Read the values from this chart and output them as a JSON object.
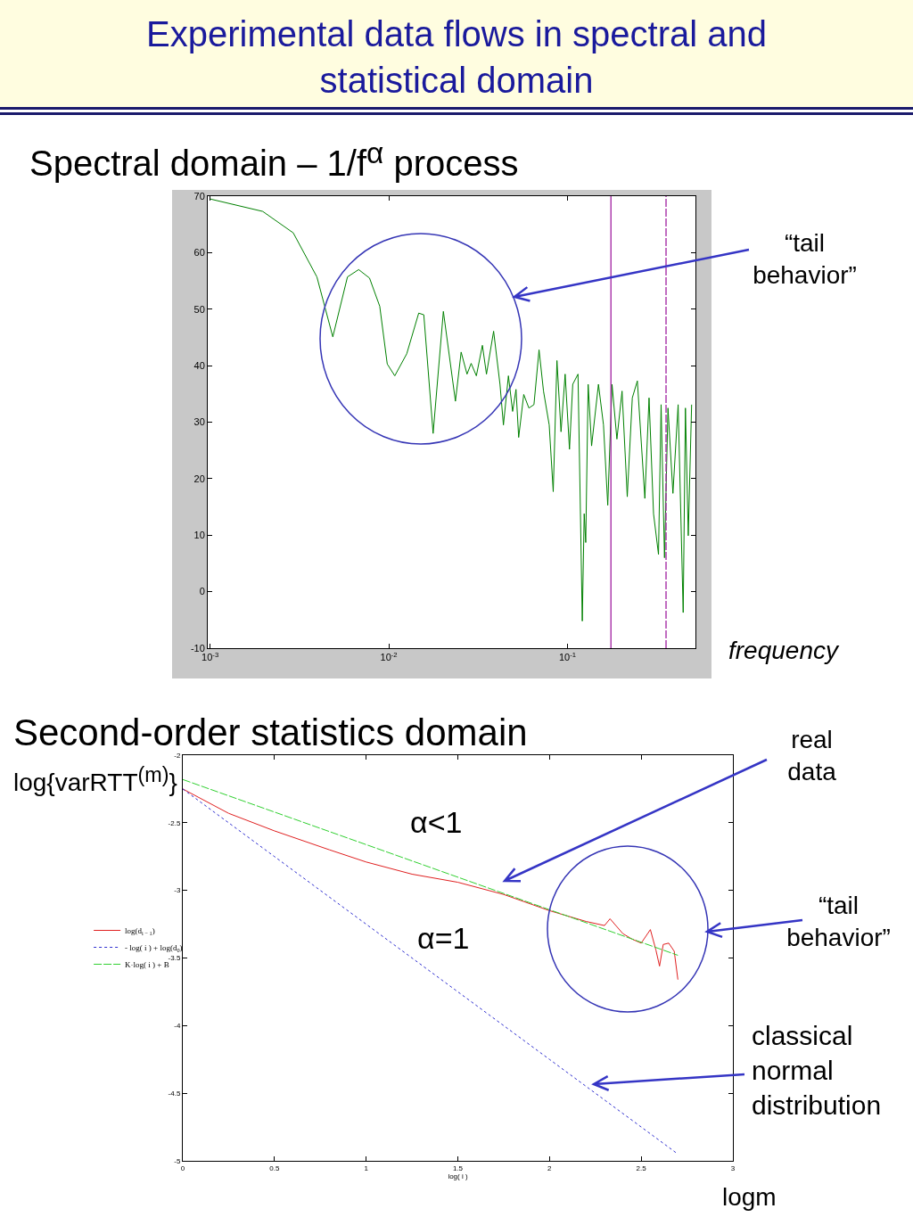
{
  "chart_data": [
    {
      "type": "line",
      "title": "Experimental data flows in spectral and statistical domain",
      "subtitle": "Spectral domain – 1/f$^{α}$ process",
      "xlabel": "frequency",
      "log": "x",
      "grid": false,
      "marker": "none",
      "xlim": [
        0.00097,
        0.52
      ],
      "xticks": [
        {
          "value": 0.001,
          "label": "10$^{-3}$"
        },
        {
          "value": 0.01,
          "label": "10$^{-2}$"
        },
        {
          "value": 0.1,
          "label": "10$^{-1}$"
        }
      ],
      "ylim": [
        -10,
        70
      ],
      "yticks": [
        -10,
        0,
        10,
        20,
        30,
        40,
        50,
        60,
        70
      ],
      "x": [
        0.001,
        0.00197,
        0.00292,
        0.00396,
        0.00486,
        0.00587,
        0.00678,
        0.0078,
        0.0089,
        0.0098,
        0.0108,
        0.0126,
        0.0147,
        0.0157,
        0.0177,
        0.0202,
        0.0236,
        0.0254,
        0.0274,
        0.0289,
        0.0309,
        0.0334,
        0.0352,
        0.0386,
        0.0419,
        0.0438,
        0.0467,
        0.0493,
        0.0515,
        0.0533,
        0.0569,
        0.0608,
        0.0649,
        0.0693,
        0.0734,
        0.079,
        0.0832,
        0.0873,
        0.092,
        0.097,
        0.1026,
        0.107,
        0.1145,
        0.121,
        0.124,
        0.1265,
        0.1305,
        0.1364,
        0.149,
        0.159,
        0.168,
        0.1775,
        0.189,
        0.202,
        0.216,
        0.2305,
        0.246,
        0.271,
        0.286,
        0.303,
        0.323,
        0.334,
        0.349,
        0.365,
        0.389,
        0.416,
        0.444,
        0.457,
        0.474,
        0.495
      ],
      "series": [
        {
          "color": "#008000",
          "line_style": "solid",
          "values": [
            69.5,
            67.3,
            63.5,
            55.7,
            45.1,
            55.7,
            57.0,
            55.5,
            50.5,
            40.3,
            38.2,
            42.1,
            49.3,
            49.0,
            28.0,
            49.6,
            33.7,
            42.4,
            38.5,
            40.4,
            38.2,
            43.6,
            38.5,
            46.1,
            36.7,
            29.5,
            38.2,
            31.9,
            35.8,
            27.3,
            34.9,
            32.5,
            33.1,
            42.8,
            35.5,
            29.5,
            17.7,
            40.9,
            28.3,
            38.5,
            25.2,
            36.7,
            38.5,
            -5.2,
            13.8,
            8.7,
            36.7,
            25.8,
            36.7,
            29.5,
            15.3,
            36.7,
            27.0,
            35.5,
            16.8,
            34.3,
            37.3,
            16.5,
            34.3,
            13.8,
            6.6,
            33.1,
            6.0,
            32.5,
            17.4,
            33.1,
            -3.7,
            32.5,
            9.9,
            33.1
          ]
        }
      ],
      "ref_lines": [
        {
          "axis": "x",
          "value": 0.175,
          "color": "#a020a0",
          "line_style": "solid"
        },
        {
          "axis": "x",
          "value": 0.356,
          "color": "#a020a0",
          "line_style": "dashed"
        }
      ],
      "annotations": [
        "“tail behavior”"
      ]
    },
    {
      "type": "line",
      "title": "Second-order statistics domain",
      "ylabel": "log{varRTT$^{(m)}$}",
      "xlabel": "log( i )",
      "grid": false,
      "marker": "none",
      "legend": "left",
      "xlim": [
        0,
        3
      ],
      "xticks": [
        0,
        0.5,
        1,
        1.5,
        2,
        2.5,
        3
      ],
      "ylim": [
        -5,
        -2
      ],
      "yticks": [
        -5,
        -4.5,
        -4,
        -3.5,
        -3,
        -2.5,
        -2
      ],
      "series": [
        {
          "name": "log(d$_{i − 1}$)",
          "color": "#e02020",
          "line_style": "solid",
          "x": [
            0,
            0.25,
            0.5,
            0.8,
            1,
            1.25,
            1.5,
            1.75,
            2,
            2.2,
            2.3,
            2.33,
            2.4,
            2.45,
            2.5,
            2.55,
            2.58,
            2.6,
            2.62,
            2.65,
            2.68,
            2.7
          ],
          "values": [
            -2.25,
            -2.43,
            -2.56,
            -2.7,
            -2.79,
            -2.88,
            -2.94,
            -3.03,
            -3.15,
            -3.23,
            -3.26,
            -3.21,
            -3.32,
            -3.36,
            -3.39,
            -3.29,
            -3.44,
            -3.56,
            -3.4,
            -3.39,
            -3.45,
            -3.66
          ]
        },
        {
          "name": "- log( i ) + log(d$_{0}$)",
          "color": "#3030d0",
          "line_style": "dotted",
          "x": [
            0,
            0.5,
            1,
            1.5,
            2,
            2.5,
            2.7
          ],
          "values": [
            -2.25,
            -2.75,
            -3.25,
            -3.75,
            -4.25,
            -4.75,
            -4.95
          ]
        },
        {
          "name": "K·log( i ) + B",
          "color": "#30d030",
          "line_style": "dashed",
          "x": [
            0,
            2.7
          ],
          "values": [
            -2.18,
            -3.48
          ]
        }
      ],
      "annotations": [
        "real data",
        "α<1",
        "α=1",
        "“tail behavior”",
        "classical normal distribution",
        "logm"
      ]
    }
  ]
}
